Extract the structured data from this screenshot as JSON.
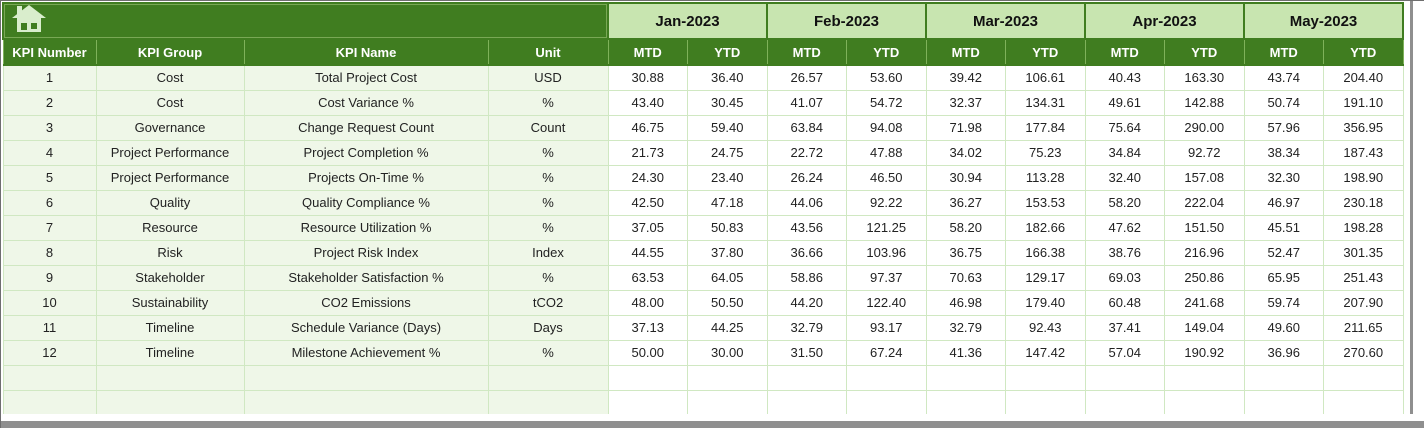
{
  "table": {
    "kpi_headers": [
      "KPI Number",
      "KPI Group",
      "KPI Name",
      "Unit"
    ],
    "months": [
      "Jan-2023",
      "Feb-2023",
      "Mar-2023",
      "Apr-2023",
      "May-2023"
    ],
    "period_columns": [
      "MTD",
      "YTD"
    ],
    "rows": [
      {
        "kpi_number": "1",
        "kpi_group": "Cost",
        "kpi_name": "Total Project Cost",
        "unit": "USD",
        "values": [
          "30.88",
          "36.40",
          "26.57",
          "53.60",
          "39.42",
          "106.61",
          "40.43",
          "163.30",
          "43.74",
          "204.40"
        ]
      },
      {
        "kpi_number": "2",
        "kpi_group": "Cost",
        "kpi_name": "Cost Variance %",
        "unit": "%",
        "values": [
          "43.40",
          "30.45",
          "41.07",
          "54.72",
          "32.37",
          "134.31",
          "49.61",
          "142.88",
          "50.74",
          "191.10"
        ]
      },
      {
        "kpi_number": "3",
        "kpi_group": "Governance",
        "kpi_name": "Change Request Count",
        "unit": "Count",
        "values": [
          "46.75",
          "59.40",
          "63.84",
          "94.08",
          "71.98",
          "177.84",
          "75.64",
          "290.00",
          "57.96",
          "356.95"
        ]
      },
      {
        "kpi_number": "4",
        "kpi_group": "Project Performance",
        "kpi_name": "Project Completion %",
        "unit": "%",
        "values": [
          "21.73",
          "24.75",
          "22.72",
          "47.88",
          "34.02",
          "75.23",
          "34.84",
          "92.72",
          "38.34",
          "187.43"
        ]
      },
      {
        "kpi_number": "5",
        "kpi_group": "Project Performance",
        "kpi_name": "Projects On-Time %",
        "unit": "%",
        "values": [
          "24.30",
          "23.40",
          "26.24",
          "46.50",
          "30.94",
          "113.28",
          "32.40",
          "157.08",
          "32.30",
          "198.90"
        ]
      },
      {
        "kpi_number": "6",
        "kpi_group": "Quality",
        "kpi_name": "Quality Compliance %",
        "unit": "%",
        "values": [
          "42.50",
          "47.18",
          "44.06",
          "92.22",
          "36.27",
          "153.53",
          "58.20",
          "222.04",
          "46.97",
          "230.18"
        ]
      },
      {
        "kpi_number": "7",
        "kpi_group": "Resource",
        "kpi_name": "Resource Utilization %",
        "unit": "%",
        "values": [
          "37.05",
          "50.83",
          "43.56",
          "121.25",
          "58.20",
          "182.66",
          "47.62",
          "151.50",
          "45.51",
          "198.28"
        ]
      },
      {
        "kpi_number": "8",
        "kpi_group": "Risk",
        "kpi_name": "Project Risk Index",
        "unit": "Index",
        "values": [
          "44.55",
          "37.80",
          "36.66",
          "103.96",
          "36.75",
          "166.38",
          "38.76",
          "216.96",
          "52.47",
          "301.35"
        ]
      },
      {
        "kpi_number": "9",
        "kpi_group": "Stakeholder",
        "kpi_name": "Stakeholder Satisfaction %",
        "unit": "%",
        "values": [
          "63.53",
          "64.05",
          "58.86",
          "97.37",
          "70.63",
          "129.17",
          "69.03",
          "250.86",
          "65.95",
          "251.43"
        ]
      },
      {
        "kpi_number": "10",
        "kpi_group": "Sustainability",
        "kpi_name": "CO2 Emissions",
        "unit": "tCO2",
        "values": [
          "48.00",
          "50.50",
          "44.20",
          "122.40",
          "46.98",
          "179.40",
          "60.48",
          "241.68",
          "59.74",
          "207.90"
        ]
      },
      {
        "kpi_number": "11",
        "kpi_group": "Timeline",
        "kpi_name": "Schedule Variance (Days)",
        "unit": "Days",
        "values": [
          "37.13",
          "44.25",
          "32.79",
          "93.17",
          "32.79",
          "92.43",
          "37.41",
          "149.04",
          "49.60",
          "211.65"
        ]
      },
      {
        "kpi_number": "12",
        "kpi_group": "Timeline",
        "kpi_name": "Milestone Achievement %",
        "unit": "%",
        "values": [
          "50.00",
          "30.00",
          "31.50",
          "67.24",
          "41.36",
          "147.42",
          "57.04",
          "190.92",
          "36.96",
          "270.60"
        ]
      }
    ],
    "empty_row_count": 2
  },
  "icons": {
    "corner_icon": "home-icon"
  },
  "colors": {
    "header_dark_green": "#407d20",
    "month_band_green": "#c8e5b0",
    "row_tint_green": "#eff7e8",
    "gridline_green": "#d0e8c2",
    "subhead_separator_green": "#7fb25a",
    "icon_pale_green": "#d9edcc",
    "scrollbar_gray": "#8f8f8f"
  }
}
